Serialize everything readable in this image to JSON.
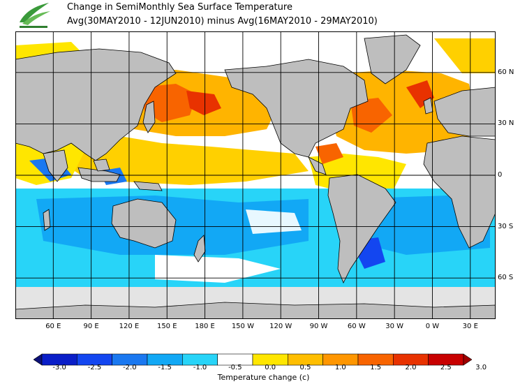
{
  "header": {
    "title_line1": "Change in SemiMonthly Sea Surface Temperature",
    "title_line2": "Avg(30MAY2010 - 12JUN2010) minus Avg(16MAY2010 - 29MAY2010)"
  },
  "map": {
    "lat_labels": [
      {
        "text": "60 N",
        "lat": 60
      },
      {
        "text": "30 N",
        "lat": 30
      },
      {
        "text": "0",
        "lat": 0
      },
      {
        "text": "30 S",
        "lat": -30
      },
      {
        "text": "60 S",
        "lat": -60
      }
    ],
    "lon_labels": [
      {
        "text": "60 E",
        "lon": 60
      },
      {
        "text": "90 E",
        "lon": 90
      },
      {
        "text": "120 E",
        "lon": 120
      },
      {
        "text": "150 E",
        "lon": 150
      },
      {
        "text": "180 E",
        "lon": 180
      },
      {
        "text": "150 W",
        "lon": 210
      },
      {
        "text": "120 W",
        "lon": 240
      },
      {
        "text": "90 W",
        "lon": 270
      },
      {
        "text": "60 W",
        "lon": 300
      },
      {
        "text": "30 W",
        "lon": 330
      },
      {
        "text": "0 W",
        "lon": 360
      },
      {
        "text": "30 E",
        "lon": 390
      }
    ],
    "extent": {
      "lon_min": 30,
      "lon_max": 410,
      "lat_min": -84,
      "lat_max": 84
    },
    "colors": {
      "land": "#bebebe",
      "ice": "#e4e4e4",
      "grid": "#000000",
      "coast": "#000000"
    }
  },
  "colorbar": {
    "title": "Temperature change  (c)",
    "ticks": [
      "-3.0",
      "-2.5",
      "-2.0",
      "-1.5",
      "-1.0",
      "-0.5",
      "0.0",
      "0.5",
      "1.0",
      "1.5",
      "2.0",
      "2.5",
      "3.0"
    ],
    "colors": [
      "#0c1078",
      "#0a1ec8",
      "#1346f0",
      "#1a78f0",
      "#12a8f5",
      "#28d4f8",
      "#ffffff",
      "#ffe600",
      "#ffbe00",
      "#ff9600",
      "#f86400",
      "#e83200",
      "#c80000",
      "#a00000"
    ]
  }
}
